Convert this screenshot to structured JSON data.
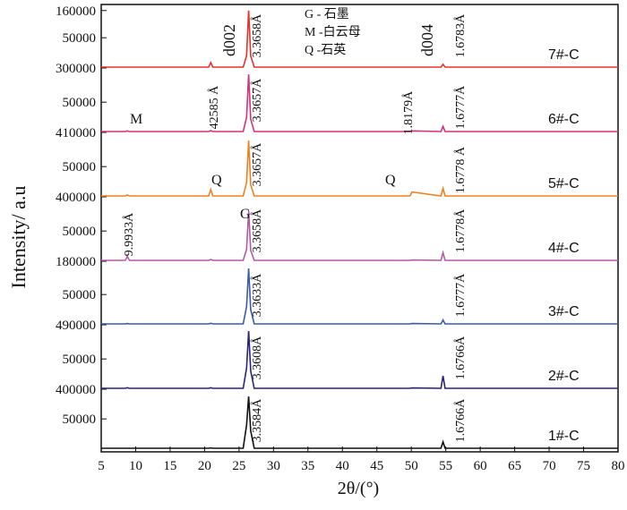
{
  "axes": {
    "xlabel": "2θ/(°)",
    "ylabel": "Intensity/ a.u",
    "xlim": [
      5,
      80
    ],
    "xticks": [
      5,
      10,
      15,
      20,
      25,
      30,
      35,
      40,
      45,
      50,
      55,
      60,
      65,
      70,
      75,
      80
    ]
  },
  "chart_data": [
    {
      "type": "line",
      "ylim": [
        0,
        105000
      ],
      "yticks": [
        {
          "value": 0,
          "label": "300000"
        },
        50000,
        {
          "value": 95000,
          "label": "160000"
        }
      ],
      "series": [
        {
          "name": "7#-C",
          "color": "#e8302a",
          "x": [
            5,
            8.5,
            8.8,
            9.1,
            20.6,
            20.9,
            21.2,
            25.6,
            26.1,
            26.4,
            26.7,
            27.2,
            49.8,
            50.1,
            54.3,
            54.6,
            54.9,
            80
          ],
          "values": [
            1500,
            1500,
            1500,
            1500,
            1500,
            9000,
            1500,
            1500,
            20000,
            95000,
            20000,
            1500,
            1500,
            1500,
            1500,
            6000,
            1500,
            1500
          ]
        }
      ],
      "annotations": [
        "d002",
        "3.3658Å",
        "d004",
        "1.6783Å",
        "G - 石墨",
        "M -白云母",
        "Q -石英"
      ]
    },
    {
      "type": "line",
      "ylim": [
        0,
        105000
      ],
      "yticks": [
        {
          "value": 0,
          "label": "410000"
        },
        50000
      ],
      "series": [
        {
          "name": "6#-C",
          "color": "#d6317a",
          "x": [
            5,
            8.5,
            8.8,
            9.1,
            20.6,
            20.9,
            21.2,
            25.6,
            26.1,
            26.4,
            26.7,
            27.2,
            49.8,
            50.1,
            54.3,
            54.6,
            54.9,
            80
          ],
          "values": [
            1500,
            1500,
            2500,
            1500,
            1500,
            3000,
            1500,
            1500,
            25000,
            96000,
            22000,
            1500,
            1500,
            2500,
            1500,
            10000,
            1500,
            1500
          ]
        }
      ],
      "annotations": [
        "M",
        "42585 Å",
        "3.3657Å",
        "1.8179Å",
        "1.6777Å"
      ]
    },
    {
      "type": "line",
      "ylim": [
        0,
        105000
      ],
      "yticks": [
        {
          "value": 0,
          "label": "400000"
        },
        50000
      ],
      "series": [
        {
          "name": "5#-C",
          "color": "#f07f1e",
          "x": [
            5,
            8.5,
            8.8,
            9.1,
            20.6,
            20.9,
            21.2,
            25.6,
            26.1,
            26.4,
            26.7,
            27.2,
            49.8,
            50.1,
            54.3,
            54.6,
            54.9,
            80
          ],
          "values": [
            1500,
            1500,
            3000,
            1500,
            1500,
            12000,
            1500,
            1500,
            24000,
            93000,
            20000,
            1500,
            1500,
            8000,
            1500,
            14000,
            1500,
            1500
          ]
        }
      ],
      "annotations": [
        "Q",
        "3.3657Å",
        "Q",
        "1.6778 Å"
      ]
    },
    {
      "type": "line",
      "ylim": [
        0,
        105000
      ],
      "yticks": [
        {
          "value": 0,
          "label": "180000"
        },
        50000
      ],
      "series": [
        {
          "name": "4#-C",
          "color": "#b45aa6",
          "x": [
            5,
            8.5,
            8.8,
            9.1,
            20.6,
            20.9,
            21.2,
            25.6,
            26.1,
            26.4,
            26.7,
            27.2,
            49.8,
            50.1,
            54.3,
            54.6,
            54.9,
            80
          ],
          "values": [
            1500,
            1500,
            8000,
            1500,
            1500,
            3000,
            1500,
            1500,
            20000,
            83000,
            18000,
            1500,
            1500,
            2000,
            1500,
            14000,
            1500,
            1500
          ]
        }
      ],
      "annotations": [
        "9.9933Å",
        "G",
        "3.3658Å",
        "1.6778Å"
      ]
    },
    {
      "type": "line",
      "ylim": [
        0,
        105000
      ],
      "yticks": [
        {
          "value": 0,
          "label": "490000"
        },
        50000
      ],
      "series": [
        {
          "name": "3#-C",
          "color": "#3a5ba8",
          "x": [
            5,
            8.5,
            8.8,
            9.1,
            20.6,
            20.9,
            21.2,
            25.6,
            26.1,
            26.4,
            26.7,
            27.2,
            49.8,
            50.1,
            54.3,
            54.6,
            54.9,
            80
          ],
          "values": [
            1500,
            1500,
            2000,
            1500,
            1500,
            2500,
            1500,
            1500,
            30000,
            93000,
            25000,
            1500,
            1500,
            2000,
            1500,
            8000,
            1500,
            1500
          ]
        }
      ],
      "annotations": [
        "3.3633Å",
        "1.6777Å"
      ]
    },
    {
      "type": "line",
      "ylim": [
        0,
        105000
      ],
      "yticks": [
        {
          "value": 0,
          "label": "400000"
        },
        50000
      ],
      "series": [
        {
          "name": "2#-C",
          "color": "#2a237e",
          "x": [
            5,
            8.5,
            8.8,
            9.1,
            20.6,
            20.9,
            21.2,
            25.6,
            26.1,
            26.4,
            26.7,
            27.2,
            49.8,
            50.1,
            54.3,
            54.6,
            54.9,
            80
          ],
          "values": [
            1500,
            1500,
            2500,
            1500,
            1500,
            2500,
            1500,
            1500,
            35000,
            96000,
            30000,
            1500,
            1500,
            2000,
            1500,
            22000,
            1500,
            1500
          ]
        }
      ],
      "annotations": [
        "3.3608Å",
        "1.6766Å"
      ]
    },
    {
      "type": "line",
      "ylim": [
        0,
        105000
      ],
      "yticks": [
        50000
      ],
      "series": [
        {
          "name": "1#-C",
          "color": "#111111",
          "x": [
            5,
            8.5,
            8.8,
            9.1,
            20.6,
            20.9,
            21.2,
            25.6,
            26.1,
            26.4,
            26.7,
            27.2,
            49.8,
            50.1,
            54.3,
            54.6,
            54.9,
            80
          ],
          "values": [
            1500,
            1500,
            1500,
            1500,
            1500,
            2000,
            1500,
            1500,
            40000,
            87000,
            30000,
            1500,
            1500,
            1500,
            1500,
            12000,
            1500,
            1500
          ]
        }
      ],
      "annotations": [
        "3.3584Å",
        "1.6766Å"
      ]
    }
  ]
}
